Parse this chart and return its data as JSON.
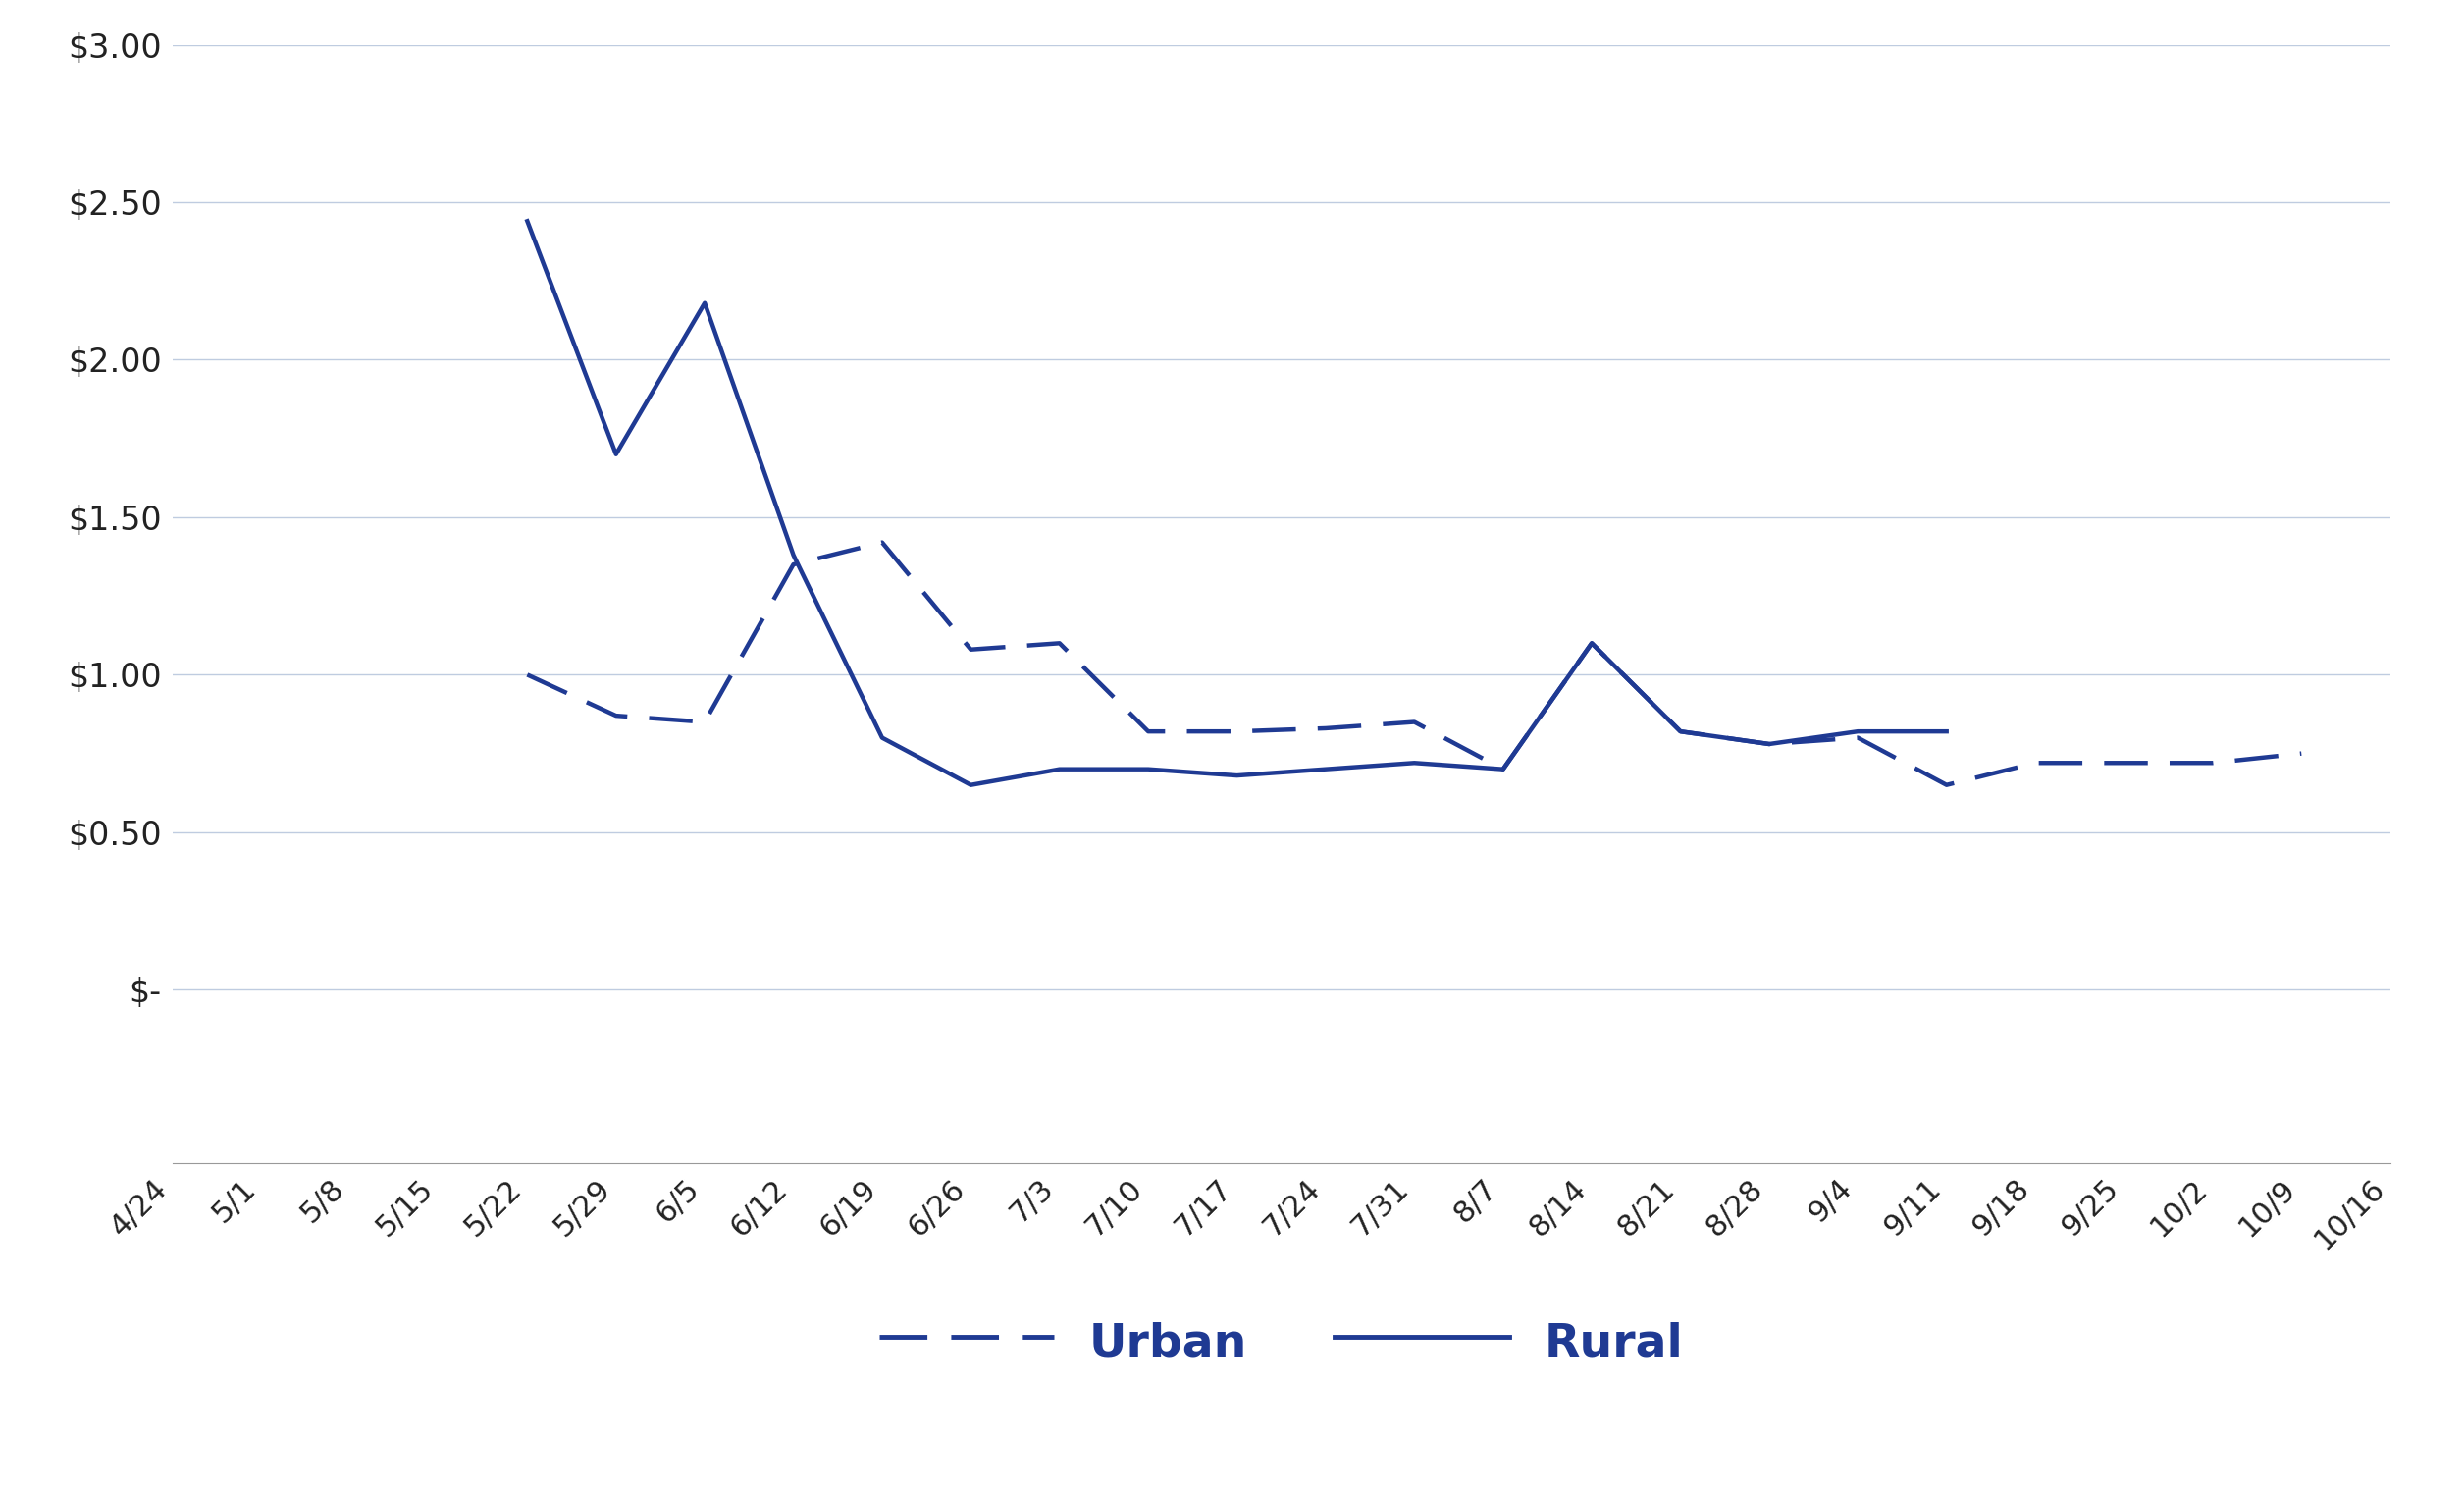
{
  "x_labels": [
    "4/24",
    "5/1",
    "5/8",
    "5/15",
    "5/22",
    "5/29",
    "6/5",
    "6/12",
    "6/19",
    "6/26",
    "7/3",
    "7/10",
    "7/17",
    "7/24",
    "7/31",
    "8/7",
    "8/14",
    "8/21",
    "8/28",
    "9/4",
    "9/11",
    "9/18",
    "9/25",
    "10/2",
    "10/9",
    "10/16"
  ],
  "urban_values": [
    null,
    null,
    null,
    null,
    1.0,
    0.87,
    0.85,
    1.35,
    1.42,
    1.08,
    1.1,
    0.82,
    0.82,
    0.83,
    0.85,
    0.7,
    1.1,
    0.82,
    0.78,
    0.8,
    0.65,
    0.72,
    0.72,
    0.72,
    0.75,
    null
  ],
  "rural_values": [
    null,
    null,
    null,
    null,
    2.44,
    1.7,
    2.18,
    1.38,
    0.8,
    0.65,
    0.7,
    0.7,
    0.68,
    0.7,
    0.72,
    0.7,
    1.1,
    0.82,
    0.78,
    0.82,
    0.82,
    null,
    null,
    null,
    null,
    null
  ],
  "line_color": "#1F3A93",
  "ylim": [
    0,
    3.0
  ],
  "yticks": [
    0,
    0.5,
    1.0,
    1.5,
    2.0,
    2.5,
    3.0
  ],
  "ytick_labels": [
    "$-",
    "$0.50",
    "$1.00",
    "$1.50",
    "$2.00",
    "$2.50",
    "$3.00"
  ],
  "background_color": "#ffffff",
  "grid_color": "#bfcce0",
  "legend_urban": "Urban",
  "legend_rural": "Rural"
}
